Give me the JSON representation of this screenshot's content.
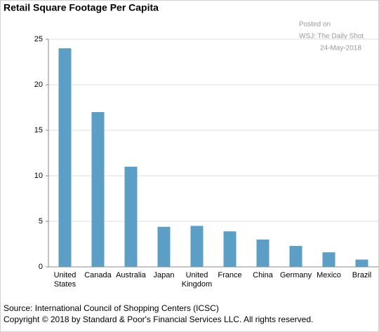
{
  "chart_data": {
    "type": "bar",
    "title": "Retail Square Footage Per Capita",
    "annotations": [
      "Posted on",
      "WSJ: The Daily Shot",
      "24-May-2018"
    ],
    "categories": [
      "United States",
      "Canada",
      "Australia",
      "Japan",
      "United Kingdom",
      "France",
      "China",
      "Germany",
      "Mexico",
      "Brazil"
    ],
    "values": [
      24,
      17,
      11,
      4.4,
      4.5,
      3.9,
      3,
      2.3,
      1.6,
      0.8
    ],
    "color": "#5b9ec6",
    "ylim": [
      0,
      25
    ],
    "yticks": [
      0,
      5,
      10,
      15,
      20,
      25
    ],
    "grid": true,
    "source": "Source: International Council of Shopping Centers (ICSC)",
    "copyright": "Copyright © 2018 by Standard & Poor's Financial Services LLC. All rights reserved."
  }
}
